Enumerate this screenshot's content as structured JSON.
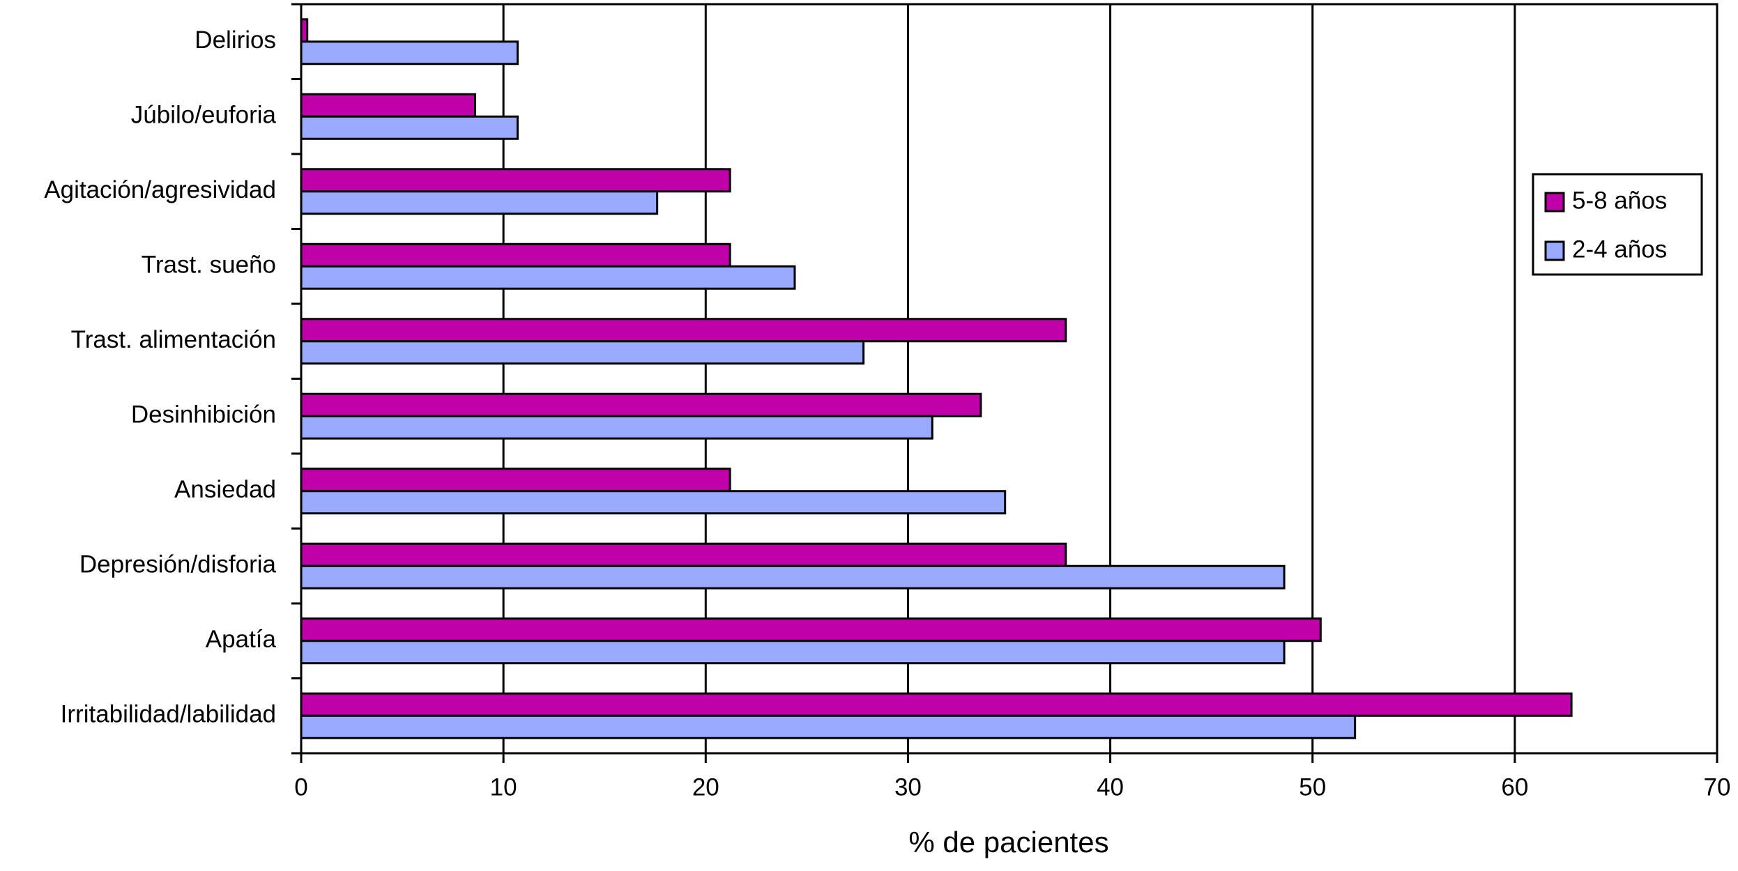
{
  "chart_data": {
    "type": "hbar",
    "xlabel": "% de pacientes",
    "categories": [
      "Delirios",
      "Júbilo/euforia",
      "Agitación/agresividad",
      "Trast. sueño",
      "Trast. alimentación",
      "Desinhibición",
      "Ansiedad",
      "Depresión/disforia",
      "Apatía",
      "Irritabilidad/labilidad"
    ],
    "series": [
      {
        "name": "5-8 años",
        "color": "#c000a8",
        "values": [
          0.3,
          8.6,
          21.2,
          21.2,
          37.8,
          33.6,
          21.2,
          37.8,
          50.4,
          62.8
        ]
      },
      {
        "name": "2-4 años",
        "color": "#99aaff",
        "values": [
          10.7,
          10.7,
          17.6,
          24.4,
          27.8,
          31.2,
          34.8,
          48.6,
          48.6,
          52.1
        ]
      }
    ],
    "xlim": [
      0,
      70
    ],
    "xticks": [
      0,
      10,
      20,
      30,
      40,
      50,
      60,
      70
    ],
    "grid": true,
    "legend": "right"
  }
}
